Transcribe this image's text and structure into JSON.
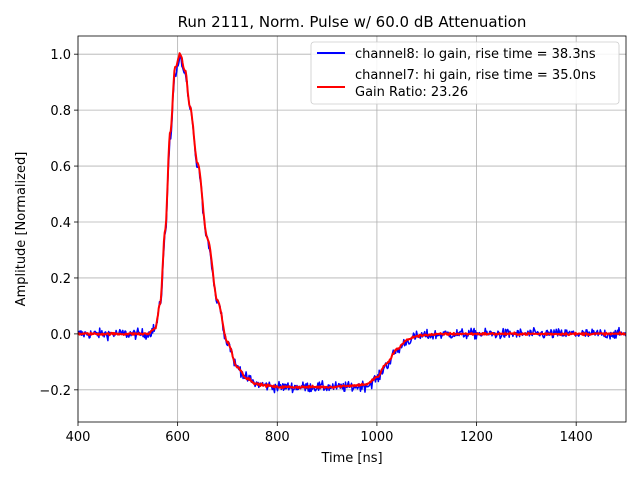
{
  "chart_data": {
    "type": "line",
    "title": "Run 2111, Norm. Pulse w/ 60.0 dB Attenuation",
    "xlabel": "Time [ns]",
    "ylabel": "Amplitude [Normalized]",
    "xlim": [
      400,
      1500
    ],
    "ylim": [
      -0.315,
      1.065
    ],
    "x_ticks": [
      400,
      600,
      800,
      1000,
      1200,
      1400
    ],
    "x_tick_labels": [
      "400",
      "600",
      "800",
      "1000",
      "1200",
      "1400"
    ],
    "y_ticks": [
      -0.2,
      0.0,
      0.2,
      0.4,
      0.6,
      0.8,
      1.0
    ],
    "y_tick_labels": [
      "−0.2",
      "0.0",
      "0.2",
      "0.4",
      "0.6",
      "0.8",
      "1.0"
    ],
    "grid": true,
    "legend_position": "top-right",
    "legend_extra_text": "Gain Ratio: 23.26",
    "series": [
      {
        "name": "channel8: lo gain, rise time = 38.3ns",
        "color": "#0000ff",
        "noise": 0.013,
        "x": [
          400,
          540,
          555,
          565,
          575,
          585,
          595,
          605,
          615,
          625,
          640,
          660,
          680,
          700,
          720,
          740,
          760,
          780,
          800,
          850,
          900,
          950,
          980,
          1000,
          1020,
          1040,
          1060,
          1080,
          1100,
          1150,
          1200,
          1300,
          1400,
          1500
        ],
        "y": [
          0.0,
          0.0,
          0.02,
          0.1,
          0.35,
          0.7,
          0.93,
          0.98,
          0.93,
          0.8,
          0.6,
          0.33,
          0.12,
          -0.03,
          -0.12,
          -0.16,
          -0.18,
          -0.185,
          -0.19,
          -0.19,
          -0.19,
          -0.19,
          -0.185,
          -0.16,
          -0.11,
          -0.06,
          -0.025,
          -0.01,
          -0.005,
          0.0,
          0.0,
          0.0,
          0.0,
          0.0
        ]
      },
      {
        "name": "channel7: hi gain, rise time = 35.0ns",
        "color": "#ff0000",
        "noise": 0.003,
        "x": [
          400,
          540,
          555,
          565,
          575,
          585,
          595,
          605,
          615,
          625,
          640,
          660,
          680,
          700,
          720,
          740,
          760,
          780,
          800,
          850,
          900,
          950,
          980,
          1000,
          1020,
          1040,
          1060,
          1080,
          1100,
          1150,
          1200,
          1300,
          1400,
          1500
        ],
        "y": [
          0.0,
          0.0,
          0.02,
          0.11,
          0.37,
          0.72,
          0.95,
          1.0,
          0.94,
          0.81,
          0.61,
          0.34,
          0.12,
          -0.03,
          -0.12,
          -0.16,
          -0.18,
          -0.185,
          -0.19,
          -0.19,
          -0.19,
          -0.185,
          -0.18,
          -0.155,
          -0.105,
          -0.055,
          -0.022,
          -0.008,
          -0.003,
          0.0,
          0.0,
          0.0,
          0.0,
          0.0
        ]
      }
    ]
  }
}
